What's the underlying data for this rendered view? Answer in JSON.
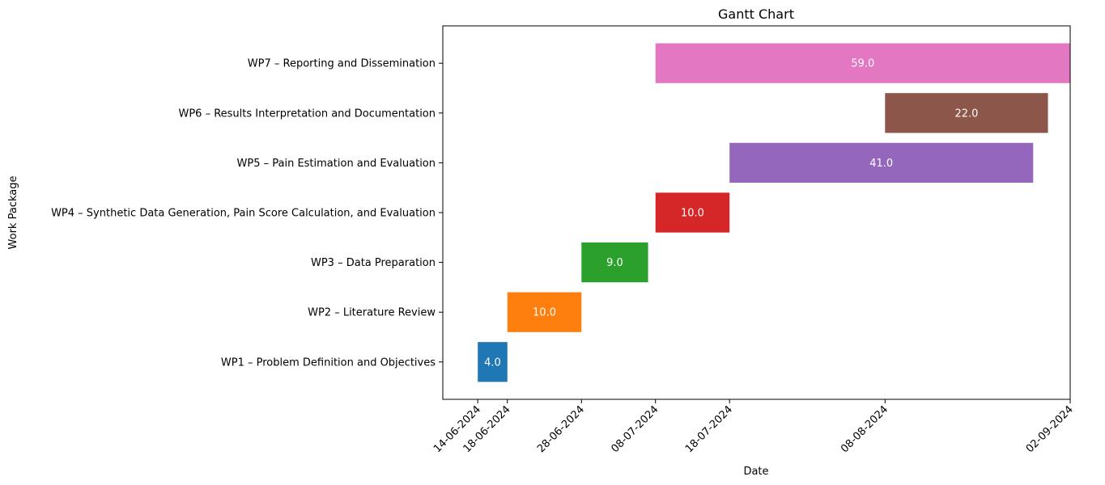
{
  "chart_data": {
    "type": "gantt",
    "title": "Gantt Chart",
    "xlabel": "Date",
    "ylabel": "Work Package",
    "date_format": "DD-MM-YYYY",
    "x_ticks": [
      "14-06-2024",
      "18-06-2024",
      "28-06-2024",
      "08-07-2024",
      "18-07-2024",
      "08-08-2024",
      "02-09-2024"
    ],
    "xlim": [
      "14-06-2024",
      "02-09-2024"
    ],
    "grid": false,
    "legend": "none",
    "tasks": [
      {
        "name": "WP1 – Problem Definition and Objectives",
        "start": "14-06-2024",
        "end": "18-06-2024",
        "duration_label": "4.0",
        "color": "#1f77b4"
      },
      {
        "name": "WP2 – Literature Review",
        "start": "18-06-2024",
        "end": "28-06-2024",
        "duration_label": "10.0",
        "color": "#ff7f0e"
      },
      {
        "name": "WP3 – Data Preparation",
        "start": "28-06-2024",
        "end": "07-07-2024",
        "duration_label": "9.0",
        "color": "#2ca02c"
      },
      {
        "name": "WP4 – Synthetic Data Generation, Pain Score Calculation, and Evaluation",
        "start": "08-07-2024",
        "end": "18-07-2024",
        "duration_label": "10.0",
        "color": "#d62728"
      },
      {
        "name": "WP5 – Pain Estimation and Evaluation",
        "start": "18-07-2024",
        "end": "28-08-2024",
        "duration_label": "41.0",
        "color": "#9467bd"
      },
      {
        "name": "WP6 – Results Interpretation and Documentation",
        "start": "08-08-2024",
        "end": "30-08-2024",
        "duration_label": "22.0",
        "color": "#8c564b"
      },
      {
        "name": "WP7 – Reporting and Dissemination",
        "start": "08-07-2024",
        "end": "05-09-2024",
        "duration_label": "59.0",
        "color": "#e377c2"
      }
    ]
  }
}
